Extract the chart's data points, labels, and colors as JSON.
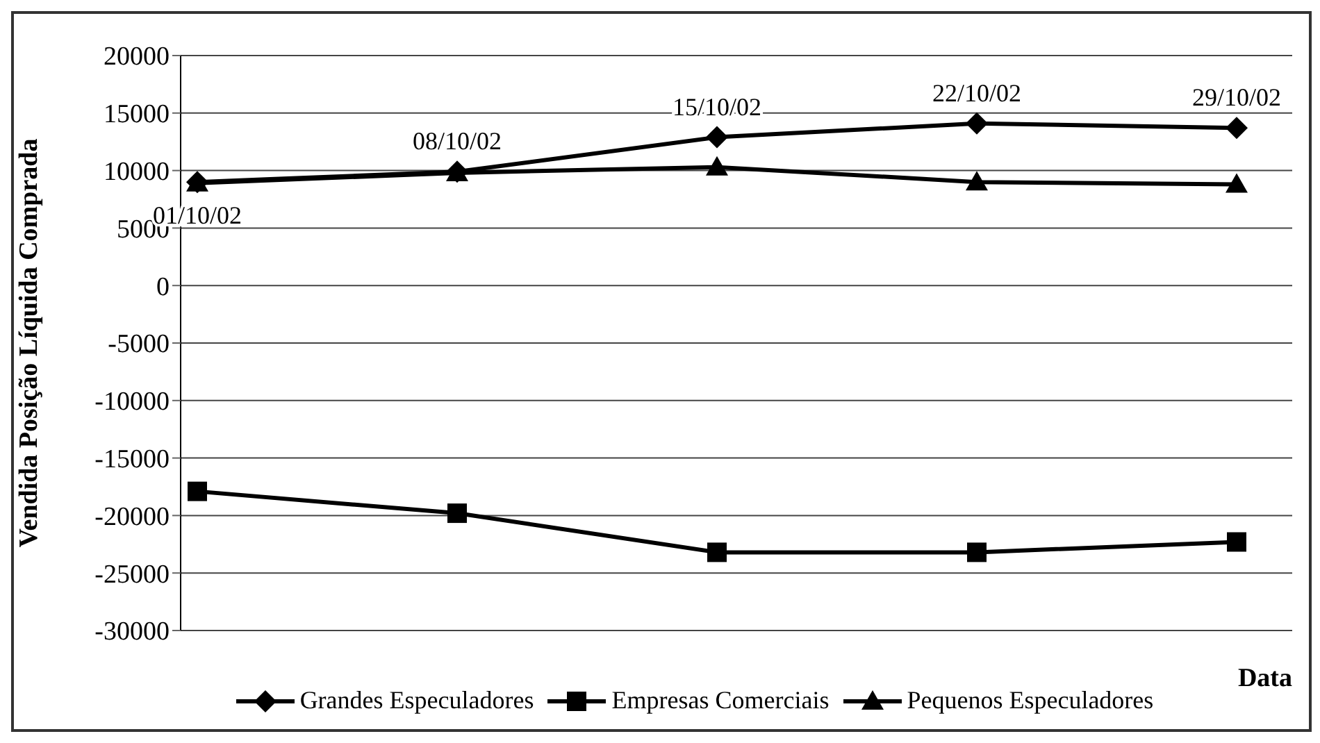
{
  "chart_data": {
    "type": "line",
    "ylabel": "Vendida Posição Líquida Comprada",
    "xlabel": "Data",
    "categories": [
      "01/10/02",
      "08/10/02",
      "15/10/02",
      "22/10/02",
      "29/10/02"
    ],
    "series": [
      {
        "name": "Grandes Especuladores",
        "color": "#000000",
        "marker": "diamond",
        "values": [
          9000,
          9900,
          12900,
          14100,
          13700
        ]
      },
      {
        "name": "Empresas Comerciais",
        "color": "#000000",
        "marker": "square",
        "values": [
          -17900,
          -19800,
          -23200,
          -23200,
          -22300
        ]
      },
      {
        "name": "Pequenos Especuladores",
        "color": "#000000",
        "marker": "triangle",
        "values": [
          8900,
          9800,
          10300,
          9000,
          8800
        ]
      }
    ],
    "ylim": [
      -30000,
      20000
    ],
    "yticks": [
      -30000,
      -25000,
      -20000,
      -15000,
      -10000,
      -5000,
      0,
      5000,
      10000,
      15000,
      20000
    ],
    "grid": "y",
    "legend": "bottom"
  }
}
